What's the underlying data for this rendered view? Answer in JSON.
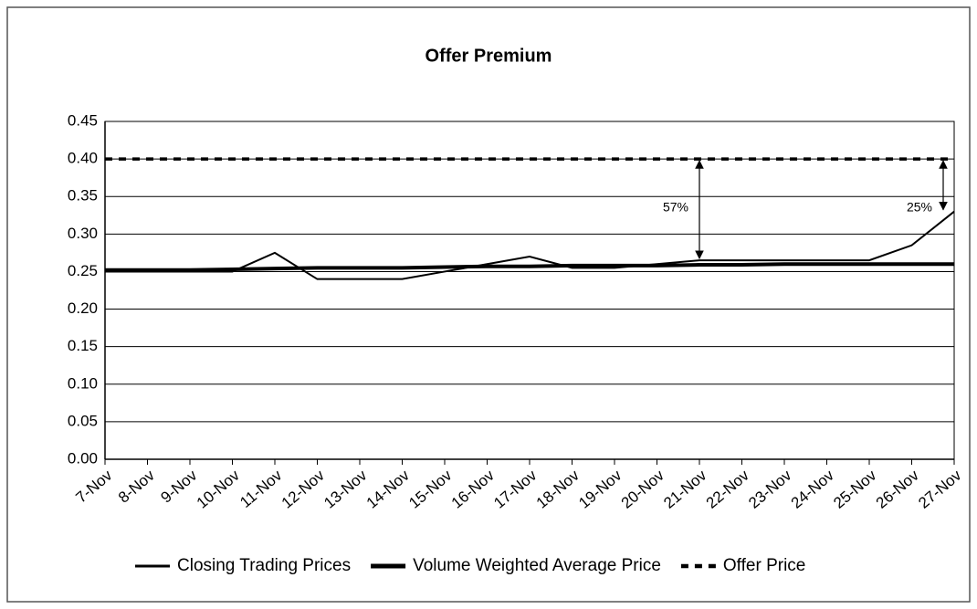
{
  "chart_data": {
    "type": "line",
    "title": "Offer Premium",
    "categories": [
      "7-Nov",
      "8-Nov",
      "9-Nov",
      "10-Nov",
      "11-Nov",
      "12-Nov",
      "13-Nov",
      "14-Nov",
      "15-Nov",
      "16-Nov",
      "17-Nov",
      "18-Nov",
      "19-Nov",
      "20-Nov",
      "21-Nov",
      "22-Nov",
      "23-Nov",
      "24-Nov",
      "25-Nov",
      "26-Nov",
      "27-Nov"
    ],
    "series": [
      {
        "name": "Closing Trading Prices",
        "color": "#000000",
        "values": [
          0.25,
          0.25,
          0.25,
          0.25,
          0.275,
          0.24,
          0.24,
          0.24,
          0.25,
          0.26,
          0.27,
          0.255,
          0.255,
          0.26,
          0.265,
          0.265,
          0.265,
          0.265,
          0.265,
          0.285,
          0.33
        ]
      },
      {
        "name": "Volume Weighted Average Price",
        "color": "#000000",
        "values": [
          0.252,
          0.252,
          0.252,
          0.253,
          0.254,
          0.255,
          0.255,
          0.255,
          0.256,
          0.257,
          0.257,
          0.258,
          0.258,
          0.258,
          0.259,
          0.259,
          0.26,
          0.26,
          0.26,
          0.26,
          0.26
        ]
      },
      {
        "name": "Offer Price",
        "color": "#000000",
        "values": [
          0.4,
          0.4,
          0.4,
          0.4,
          0.4,
          0.4,
          0.4,
          0.4,
          0.4,
          0.4,
          0.4,
          0.4,
          0.4,
          0.4,
          0.4,
          0.4,
          0.4,
          0.4,
          0.4,
          0.4,
          0.4
        ]
      }
    ],
    "annotations": [
      "57%",
      "25%"
    ],
    "ylim": [
      0,
      0.45
    ],
    "yticks": [
      {
        "value": 0,
        "label": "0.00"
      },
      {
        "value": 0.05,
        "label": "0.05"
      },
      {
        "value": 0.1,
        "label": "0.10"
      },
      {
        "value": 0.15,
        "label": "0.15"
      },
      {
        "value": 0.2,
        "label": "0.20"
      },
      {
        "value": 0.25,
        "label": "0.25"
      },
      {
        "value": 0.3,
        "label": "0.30"
      },
      {
        "value": 0.35,
        "label": "0.35"
      },
      {
        "value": 0.4,
        "label": "0.40"
      },
      {
        "value": 0.45,
        "label": "0.45"
      }
    ],
    "grid": true,
    "legend": "bottom"
  }
}
